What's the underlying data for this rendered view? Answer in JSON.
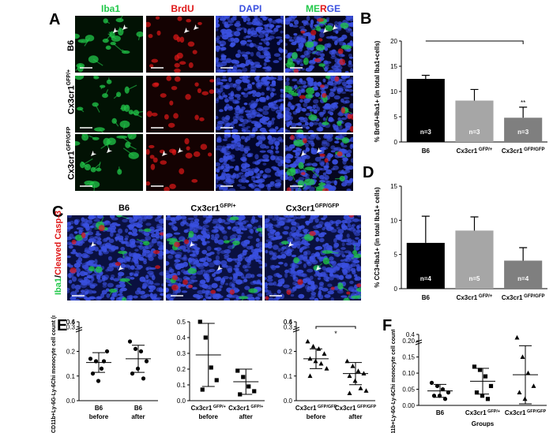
{
  "panel_labels": {
    "A": "A",
    "B": "B",
    "C": "C",
    "D": "D",
    "E": "E",
    "F": "F"
  },
  "panelA": {
    "channels": [
      "Iba1",
      "BrdU",
      "DAPI"
    ],
    "merge_parts": [
      "ME",
      "R",
      "GE"
    ],
    "rows": [
      "B6",
      "Cx3cr1",
      "Cx3cr1"
    ],
    "row_sups": [
      "",
      "GFP/+",
      "GFP/GFP"
    ]
  },
  "panelC": {
    "columns": [
      "B6",
      "Cx3cr1",
      "Cx3cr1"
    ],
    "column_sups": [
      "",
      "GFP/+",
      "GFP/GFP"
    ],
    "side_label_green": "Iba1",
    "side_label_sep": "/",
    "side_label_red": "Cleaved Casp-3"
  },
  "colors": {
    "green": "#22c84a",
    "red": "#e01818",
    "blue": "#3a50e0",
    "bar_black": "#000000",
    "bar_lightgray": "#a6a6a6",
    "bar_darkgray": "#7f7f7f"
  },
  "chart_data": [
    {
      "id": "B",
      "type": "bar",
      "ylabel": "% BrdU+Iba1+ (in total Iba1+cells)",
      "ylim": [
        0,
        20
      ],
      "yticks": [
        "0",
        "5",
        "10",
        "15",
        "20"
      ],
      "categories": [
        "B6",
        "Cx3cr1",
        "Cx3cr1"
      ],
      "category_sups": [
        "",
        "GFP/+",
        "GFP/GFP"
      ],
      "values": [
        12.5,
        8.2,
        4.8
      ],
      "errors": [
        0.7,
        2.2,
        2.1
      ],
      "n_labels": [
        "n=3",
        "n=3",
        "n=3"
      ],
      "annotations": [
        "**"
      ],
      "bracket": [
        "B6",
        "Cx3cr1 GFP/GFP"
      ]
    },
    {
      "id": "D",
      "type": "bar",
      "ylabel": "% CC3+Iba1+ (in total Iba1+ cells)",
      "ylim": [
        0,
        15
      ],
      "yticks": [
        "0",
        "5",
        "10",
        "15"
      ],
      "categories": [
        "B6",
        "Cx3cr1",
        "Cx3cr1"
      ],
      "category_sups": [
        "",
        "GFP/+",
        "GFP/GFP"
      ],
      "values": [
        6.7,
        8.5,
        4.1
      ],
      "errors": [
        3.9,
        2.0,
        1.9
      ],
      "n_labels": [
        "n=4",
        "n=5",
        "n=4"
      ]
    },
    {
      "id": "E1",
      "type": "scatter",
      "ylabel": "CD11b+Ly-6G-Ly-6Chi monocyte cell count (million/ml)",
      "yticks": [
        "0.0",
        "0.1",
        "0.2",
        "0.3",
        "0.4",
        "0.6"
      ],
      "categories": [
        "B6 before",
        "B6 after"
      ],
      "category_lines": [
        [
          "B6",
          "before"
        ],
        [
          "B6",
          "after"
        ]
      ],
      "series": [
        {
          "marker": "circle",
          "values": [
            0.17,
            0.16,
            0.13,
            0.2,
            0.11,
            0.08,
            0.16
          ]
        },
        {
          "marker": "circle",
          "values": [
            0.24,
            0.21,
            0.2,
            0.16,
            0.11,
            0.13,
            0.09
          ]
        }
      ],
      "means": [
        0.155,
        0.17
      ],
      "sd": [
        0.04,
        0.055
      ]
    },
    {
      "id": "E2",
      "type": "scatter",
      "yticks": [
        "0.0",
        "0.1",
        "0.2",
        "0.3",
        "0.4",
        "0.5"
      ],
      "categories": [
        "Cx3cr1 GFP/+ before",
        "Cx3cr1 GFP/+ after"
      ],
      "category_lines": [
        [
          "Cx3cr1",
          "before"
        ],
        [
          "Cx3cr1",
          "after"
        ]
      ],
      "category_sups": [
        "GFP/+",
        "GFP/+"
      ],
      "series": [
        {
          "marker": "square",
          "values": [
            0.5,
            0.4,
            0.21,
            0.13,
            0.07
          ]
        },
        {
          "marker": "square",
          "values": [
            0.19,
            0.15,
            0.09,
            0.06,
            0.04
          ]
        }
      ],
      "means": [
        0.29,
        0.12
      ],
      "sd": [
        0.2,
        0.08
      ]
    },
    {
      "id": "E3",
      "type": "scatter",
      "yticks": [
        "0.0",
        "0.1",
        "0.2",
        "0.3",
        "0.4",
        "0.6"
      ],
      "categories": [
        "Cx3cr1 GFP/GFP before",
        "Cx3cr1 GFP/GFP after"
      ],
      "category_lines": [
        [
          "Cx3cr1",
          "before"
        ],
        [
          "Cx3cr1",
          "after"
        ]
      ],
      "category_sups": [
        "GFP/GFP",
        "GFP/GFP"
      ],
      "series": [
        {
          "marker": "triangle",
          "values": [
            0.24,
            0.22,
            0.21,
            0.19,
            0.17,
            0.16,
            0.15,
            0.13,
            0.1
          ]
        },
        {
          "marker": "triangle",
          "values": [
            0.16,
            0.14,
            0.12,
            0.11,
            0.1,
            0.08,
            0.05,
            0.04,
            0.03
          ]
        }
      ],
      "means": [
        0.17,
        0.11
      ],
      "sd": [
        0.04,
        0.045
      ],
      "annotations": [
        "*"
      ]
    },
    {
      "id": "F",
      "type": "scatter",
      "ylabel": "CD11b+Ly-6G-Ly-6Chi monocyte cell count (million/ml)",
      "xlabel": "Groups",
      "yticks": [
        "0.00",
        "0.05",
        "0.10",
        "0.15",
        "0.20",
        "0.4"
      ],
      "categories": [
        "B6",
        "Cx3cr1 GFP/+",
        "Cx3cr1 GFP/GFP"
      ],
      "category_lines": [
        [
          "B6",
          ""
        ],
        [
          "Cx3cr1",
          ""
        ],
        [
          "Cx3cr1",
          ""
        ]
      ],
      "category_sups": [
        "",
        "GFP/+",
        "GFP/GFP"
      ],
      "series": [
        {
          "marker": "circle",
          "values": [
            0.07,
            0.06,
            0.05,
            0.04,
            0.03,
            0.03,
            0.02
          ]
        },
        {
          "marker": "square",
          "values": [
            0.12,
            0.11,
            0.09,
            0.06,
            0.04,
            0.03,
            0.02
          ]
        },
        {
          "marker": "triangle",
          "values": [
            0.21,
            0.15,
            0.1,
            0.06,
            0.04,
            0.02
          ]
        }
      ],
      "means": [
        0.045,
        0.075,
        0.095
      ],
      "sd": [
        0.02,
        0.04,
        0.09
      ]
    }
  ]
}
